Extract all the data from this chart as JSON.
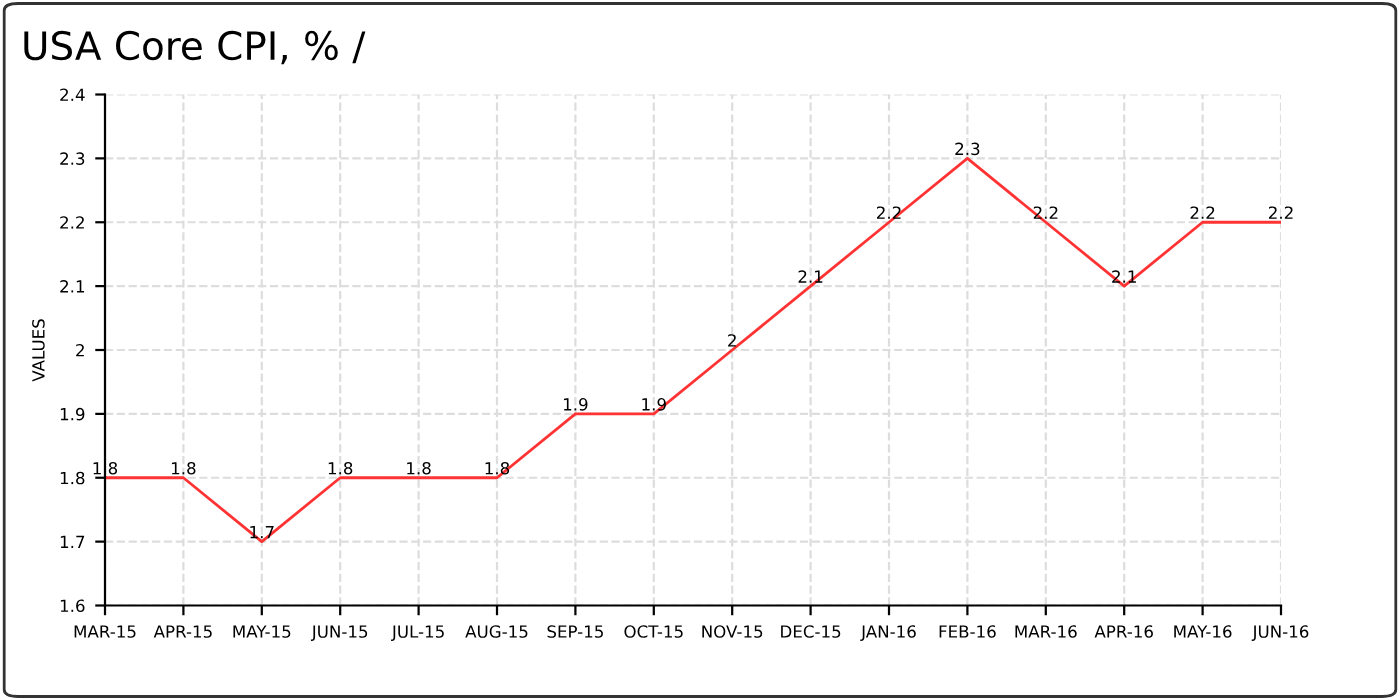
{
  "chart_data": {
    "type": "line",
    "title": "USA Core CPI, % /",
    "ylabel": "VALUES",
    "categories": [
      "MAR-15",
      "APR-15",
      "MAY-15",
      "JUN-15",
      "JUL-15",
      "AUG-15",
      "SEP-15",
      "OCT-15",
      "NOV-15",
      "DEC-15",
      "JAN-16",
      "FEB-16",
      "MAR-16",
      "APR-16",
      "MAY-16",
      "JUN-16"
    ],
    "series": [
      {
        "color": "#ff3333",
        "values": [
          1.8,
          1.8,
          1.7,
          1.8,
          1.8,
          1.8,
          1.9,
          1.9,
          2,
          2.1,
          2.2,
          2.3,
          2.2,
          2.1,
          2.2,
          2.2
        ]
      }
    ],
    "ylim": [
      1.6,
      2.4
    ],
    "yticks": [
      1.6,
      1.7,
      1.8,
      1.9,
      2,
      2.1,
      2.2,
      2.3,
      2.4
    ],
    "grid": true,
    "line_style": "solid",
    "marker": "none",
    "data_labels": true
  }
}
